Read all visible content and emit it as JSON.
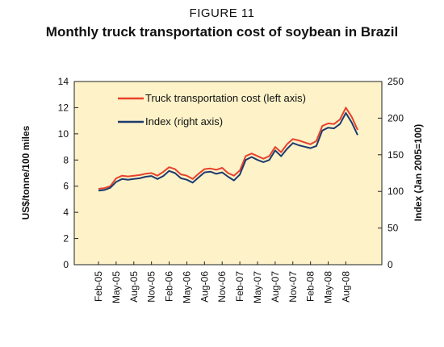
{
  "figure_label": "FIGURE 11",
  "chart_data": {
    "type": "line",
    "title": "Monthly truck transportation cost of soybean in Brazil",
    "ylabel_left": "US$/tonne/100 miles",
    "ylabel_right": "Index (Jan 2005=100)",
    "ylim_left": [
      0,
      14
    ],
    "ylim_right": [
      0,
      250
    ],
    "yticks_left": [
      0,
      2,
      4,
      6,
      8,
      10,
      12,
      14
    ],
    "yticks_right": [
      0,
      50,
      100,
      150,
      200,
      250
    ],
    "x_tick_labels": [
      "Feb-05",
      "May-05",
      "Aug-05",
      "Nov-05",
      "Feb-06",
      "May-06",
      "Aug-06",
      "Nov-06",
      "Feb-07",
      "May-07",
      "Aug-07",
      "Nov-07",
      "Feb-08",
      "May-08",
      "Aug-08"
    ],
    "x": [
      "Feb-05",
      "Mar-05",
      "Apr-05",
      "May-05",
      "Jun-05",
      "Jul-05",
      "Aug-05",
      "Sep-05",
      "Oct-05",
      "Nov-05",
      "Dec-05",
      "Jan-06",
      "Feb-06",
      "Mar-06",
      "Apr-06",
      "May-06",
      "Jun-06",
      "Jul-06",
      "Aug-06",
      "Sep-06",
      "Oct-06",
      "Nov-06",
      "Dec-06",
      "Jan-07",
      "Feb-07",
      "Mar-07",
      "Apr-07",
      "May-07",
      "Jun-07",
      "Jul-07",
      "Aug-07",
      "Sep-07",
      "Oct-07",
      "Nov-07",
      "Dec-07",
      "Jan-08",
      "Feb-08",
      "Mar-08",
      "Apr-08",
      "May-08",
      "Jun-08",
      "Jul-08",
      "Aug-08",
      "Sep-08",
      "Oct-08"
    ],
    "legend_position": "top-left",
    "grid": false,
    "series": [
      {
        "name": "Truck transportation cost (left axis)",
        "axis": "left",
        "color": "#e8412c",
        "values": [
          5.8,
          5.85,
          6.0,
          6.6,
          6.8,
          6.75,
          6.8,
          6.85,
          6.95,
          7.0,
          6.8,
          7.1,
          7.45,
          7.3,
          6.9,
          6.8,
          6.55,
          6.95,
          7.3,
          7.35,
          7.25,
          7.4,
          7.0,
          6.8,
          7.2,
          8.3,
          8.5,
          8.3,
          8.1,
          8.3,
          9.0,
          8.6,
          9.2,
          9.6,
          9.5,
          9.35,
          9.2,
          9.45,
          10.6,
          10.8,
          10.75,
          11.1,
          12.0,
          11.3,
          10.3
        ]
      },
      {
        "name": "Index  (right axis)",
        "axis": "right",
        "color": "#1c3b6e",
        "values": [
          101,
          102,
          105,
          113,
          117,
          116,
          117,
          118,
          120,
          121,
          117,
          121,
          128,
          125,
          118,
          116,
          112,
          119,
          126,
          127,
          124,
          126,
          120,
          115,
          123,
          143,
          147,
          143,
          140,
          143,
          156,
          148,
          158,
          166,
          163,
          161,
          159,
          162,
          183,
          187,
          186,
          192,
          207,
          194,
          177
        ]
      }
    ]
  }
}
